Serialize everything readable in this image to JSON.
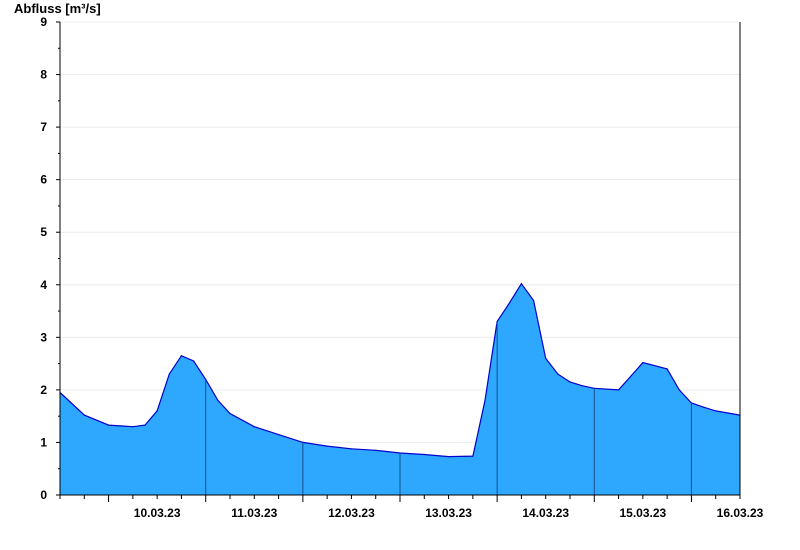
{
  "chart_data": {
    "type": "area",
    "ylabel": "Abfluss [m³/s]",
    "xlabel": "",
    "title": "",
    "ylim": [
      0,
      9
    ],
    "yticks": [
      "0",
      "1",
      "2",
      "3",
      "4",
      "5",
      "6",
      "7",
      "8",
      "9"
    ],
    "xrange": [
      "09.03.23 12:00",
      "16.03.23 12:00"
    ],
    "xtick_labels": [
      "10.03.23",
      "11.03.23",
      "12.03.23",
      "13.03.23",
      "14.03.23",
      "15.03.23",
      "16.03.23"
    ],
    "grid": true,
    "fill_color": "#2ea8ff",
    "line_color": "#0000cc",
    "x": [
      "09.03.23 12:00",
      "09.03.23 18:00",
      "10.03.23 00:00",
      "10.03.23 06:00",
      "10.03.23 09:00",
      "10.03.23 12:00",
      "10.03.23 15:00",
      "10.03.23 18:00",
      "10.03.23 21:00",
      "11.03.23 00:00",
      "11.03.23 03:00",
      "11.03.23 06:00",
      "11.03.23 12:00",
      "11.03.23 18:00",
      "12.03.23 00:00",
      "12.03.23 06:00",
      "12.03.23 12:00",
      "12.03.23 18:00",
      "13.03.23 00:00",
      "13.03.23 06:00",
      "13.03.23 12:00",
      "13.03.23 18:00",
      "13.03.23 21:00",
      "14.03.23 00:00",
      "14.03.23 03:00",
      "14.03.23 06:00",
      "14.03.23 09:00",
      "14.03.23 12:00",
      "14.03.23 15:00",
      "14.03.23 18:00",
      "14.03.23 21:00",
      "15.03.23 00:00",
      "15.03.23 06:00",
      "15.03.23 12:00",
      "15.03.23 18:00",
      "15.03.23 21:00",
      "16.03.23 00:00",
      "16.03.23 03:00",
      "16.03.23 06:00",
      "16.03.23 12:00"
    ],
    "values": [
      1.95,
      1.52,
      1.33,
      1.3,
      1.33,
      1.6,
      2.3,
      2.65,
      2.55,
      2.2,
      1.8,
      1.55,
      1.3,
      1.15,
      1.0,
      0.93,
      0.88,
      0.85,
      0.8,
      0.77,
      0.73,
      0.74,
      1.8,
      3.3,
      3.65,
      4.02,
      3.7,
      2.6,
      2.3,
      2.15,
      2.08,
      2.03,
      2.0,
      2.52,
      2.4,
      2.0,
      1.75,
      1.67,
      1.6,
      1.52
    ]
  }
}
